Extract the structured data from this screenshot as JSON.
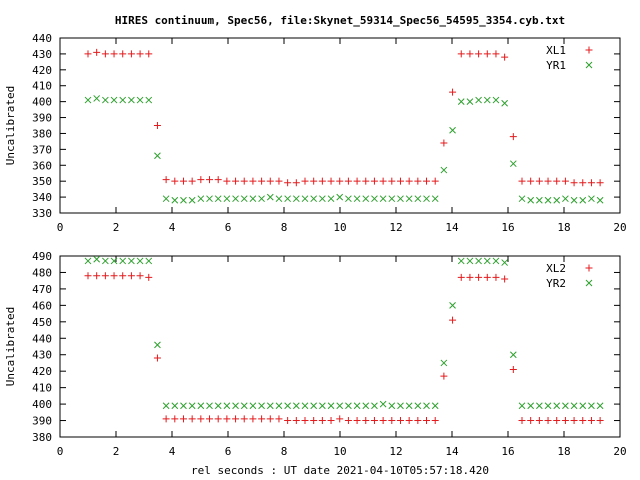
{
  "figure": {
    "title": "HIRES continuum, Spec56, file:Skynet_59314_Spec56_54595_3354.cyb.txt",
    "xlabel": "rel seconds : UT date 2021-04-10T05:57:18.420"
  },
  "colors": {
    "red": "#e41a1c",
    "green": "#2ca02c",
    "axis": "#000000",
    "grid": "#a0a0a0"
  },
  "chart_data": [
    {
      "type": "scatter",
      "ylabel": "Uncalibrated",
      "xlim": [
        0,
        20
      ],
      "ylim": [
        330,
        440
      ],
      "xticks": [
        0,
        2,
        4,
        6,
        8,
        10,
        12,
        14,
        16,
        18,
        20
      ],
      "yticks": [
        330,
        340,
        350,
        360,
        370,
        380,
        390,
        400,
        410,
        420,
        430,
        440
      ],
      "legend_position": "top-right",
      "x": [
        1.0,
        1.31,
        1.62,
        1.93,
        2.24,
        2.55,
        2.86,
        3.17,
        3.48,
        3.79,
        4.1,
        4.41,
        4.72,
        5.03,
        5.34,
        5.65,
        5.96,
        6.27,
        6.58,
        6.89,
        7.2,
        7.51,
        7.82,
        8.13,
        8.44,
        8.75,
        9.06,
        9.37,
        9.68,
        9.99,
        10.3,
        10.61,
        10.92,
        11.23,
        11.54,
        11.85,
        12.16,
        12.47,
        12.78,
        13.09,
        13.4,
        13.71,
        14.02,
        14.33,
        14.64,
        14.95,
        15.26,
        15.57,
        15.88,
        16.19,
        16.5,
        16.81,
        17.12,
        17.43,
        17.74,
        18.05,
        18.36,
        18.67,
        18.98,
        19.29
      ],
      "series": [
        {
          "name": "XL1",
          "marker": "plus",
          "color": "#e41a1c",
          "values": [
            430,
            431,
            430,
            430,
            430,
            430,
            430,
            430,
            385,
            351,
            350,
            350,
            350,
            351,
            351,
            351,
            350,
            350,
            350,
            350,
            350,
            350,
            350,
            349,
            349,
            350,
            350,
            350,
            350,
            350,
            350,
            350,
            350,
            350,
            350,
            350,
            350,
            350,
            350,
            350,
            350,
            374,
            406,
            430,
            430,
            430,
            430,
            430,
            428,
            378,
            350,
            350,
            350,
            350,
            350,
            350,
            349,
            349,
            349,
            349
          ]
        },
        {
          "name": "YR1",
          "marker": "cross",
          "color": "#2ca02c",
          "values": [
            401,
            402,
            401,
            401,
            401,
            401,
            401,
            401,
            366,
            339,
            338,
            338,
            338,
            339,
            339,
            339,
            339,
            339,
            339,
            339,
            339,
            340,
            339,
            339,
            339,
            339,
            339,
            339,
            339,
            340,
            339,
            339,
            339,
            339,
            339,
            339,
            339,
            339,
            339,
            339,
            339,
            357,
            382,
            400,
            400,
            401,
            401,
            401,
            399,
            361,
            339,
            338,
            338,
            338,
            338,
            339,
            338,
            338,
            339,
            338
          ]
        }
      ]
    },
    {
      "type": "scatter",
      "ylabel": "Uncalibrated",
      "xlim": [
        0,
        20
      ],
      "ylim": [
        380,
        490
      ],
      "xticks": [
        0,
        2,
        4,
        6,
        8,
        10,
        12,
        14,
        16,
        18,
        20
      ],
      "yticks": [
        380,
        390,
        400,
        410,
        420,
        430,
        440,
        450,
        460,
        470,
        480,
        490
      ],
      "legend_position": "top-right",
      "x": [
        1.0,
        1.31,
        1.62,
        1.93,
        2.24,
        2.55,
        2.86,
        3.17,
        3.48,
        3.79,
        4.1,
        4.41,
        4.72,
        5.03,
        5.34,
        5.65,
        5.96,
        6.27,
        6.58,
        6.89,
        7.2,
        7.51,
        7.82,
        8.13,
        8.44,
        8.75,
        9.06,
        9.37,
        9.68,
        9.99,
        10.3,
        10.61,
        10.92,
        11.23,
        11.54,
        11.85,
        12.16,
        12.47,
        12.78,
        13.09,
        13.4,
        13.71,
        14.02,
        14.33,
        14.64,
        14.95,
        15.26,
        15.57,
        15.88,
        16.19,
        16.5,
        16.81,
        17.12,
        17.43,
        17.74,
        18.05,
        18.36,
        18.67,
        18.98,
        19.29
      ],
      "series": [
        {
          "name": "XL2",
          "marker": "plus",
          "color": "#e41a1c",
          "values": [
            478,
            478,
            478,
            478,
            478,
            478,
            478,
            477,
            428,
            391,
            391,
            391,
            391,
            391,
            391,
            391,
            391,
            391,
            391,
            391,
            391,
            391,
            391,
            390,
            390,
            390,
            390,
            390,
            390,
            391,
            390,
            390,
            390,
            390,
            390,
            390,
            390,
            390,
            390,
            390,
            390,
            417,
            451,
            477,
            477,
            477,
            477,
            477,
            476,
            421,
            390,
            390,
            390,
            390,
            390,
            390,
            390,
            390,
            390,
            390
          ]
        },
        {
          "name": "YR2",
          "marker": "cross",
          "color": "#2ca02c",
          "values": [
            487,
            488,
            487,
            487,
            487,
            487,
            487,
            487,
            436,
            399,
            399,
            399,
            399,
            399,
            399,
            399,
            399,
            399,
            399,
            399,
            399,
            399,
            399,
            399,
            399,
            399,
            399,
            399,
            399,
            399,
            399,
            399,
            399,
            399,
            400,
            399,
            399,
            399,
            399,
            399,
            399,
            425,
            460,
            487,
            487,
            487,
            487,
            487,
            486,
            430,
            399,
            399,
            399,
            399,
            399,
            399,
            399,
            399,
            399,
            399
          ]
        }
      ]
    }
  ]
}
